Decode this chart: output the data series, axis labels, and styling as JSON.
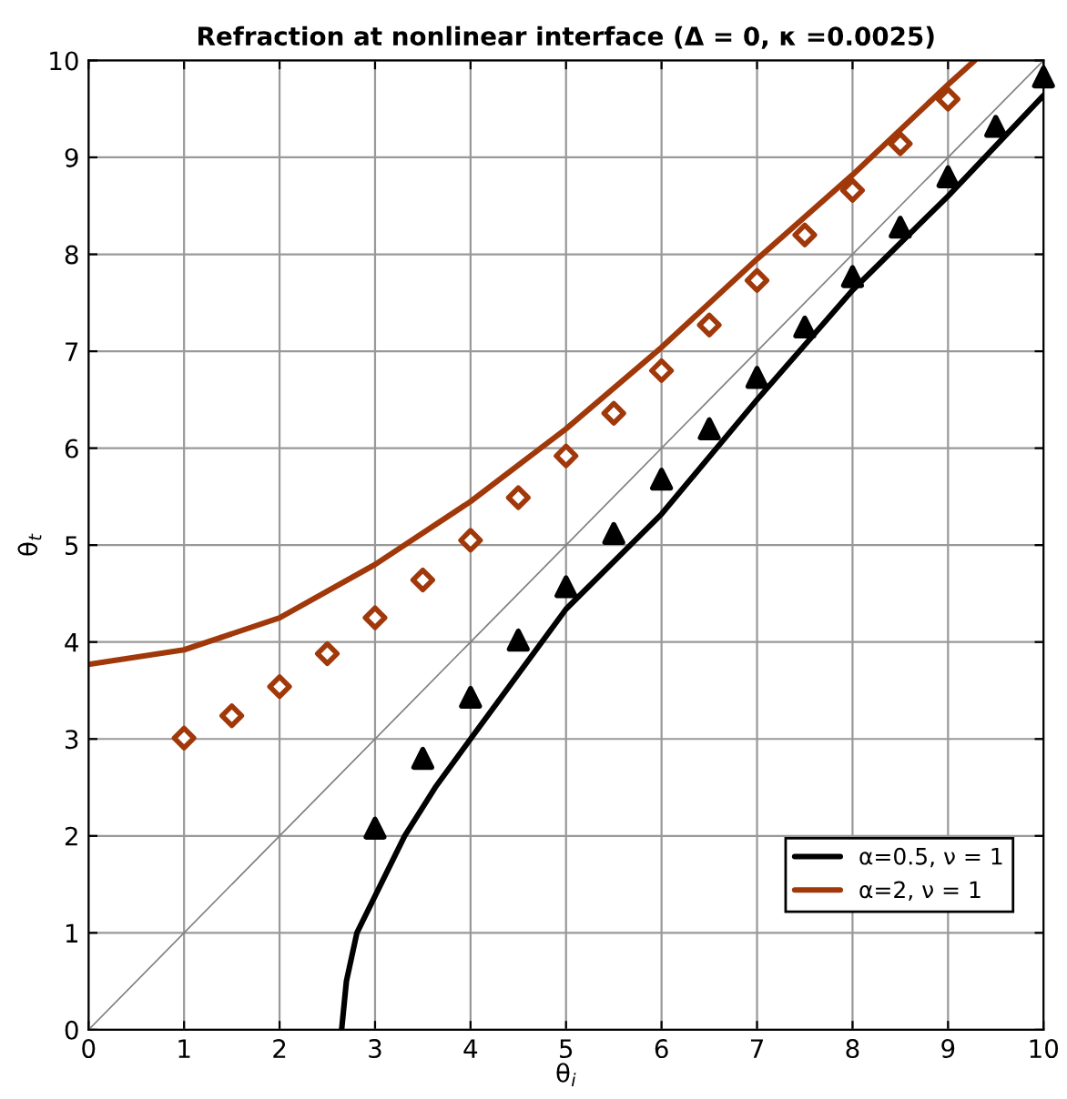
{
  "chart_data": {
    "type": "line",
    "title": "Refraction at nonlinear interface (Δ = 0, κ =0.0025)",
    "xlabel": "θ$_{i}$",
    "ylabel": "θ$_{t}$",
    "xlim": [
      0,
      10
    ],
    "ylim": [
      0,
      10
    ],
    "xticks": [
      0,
      1,
      2,
      3,
      4,
      5,
      6,
      7,
      8,
      9,
      10
    ],
    "yticks": [
      0,
      1,
      2,
      3,
      4,
      5,
      6,
      7,
      8,
      9,
      10
    ],
    "grid": true,
    "legend": "bottom right",
    "series": [
      {
        "color": "#808080",
        "x": [
          0,
          10
        ],
        "values": [
          0,
          10
        ]
      },
      {
        "type": "line",
        "name": "α=0.5, ν = 1",
        "color": "#000000",
        "x": [
          2.65,
          2.7,
          2.81,
          3.06,
          3.31,
          3.63,
          4.0,
          5,
          6,
          7,
          8,
          9,
          10
        ],
        "values": [
          0,
          0.5,
          1,
          1.5,
          2,
          2.5,
          3,
          4.34,
          5.32,
          6.5,
          7.63,
          8.6,
          9.64
        ]
      },
      {
        "type": "line",
        "name": "α=2, ν = 1",
        "color": "#a0380a",
        "x": [
          0,
          1,
          2,
          3,
          4,
          5,
          6,
          7,
          8,
          9,
          9.28
        ],
        "values": [
          3.77,
          3.92,
          4.25,
          4.8,
          5.45,
          6.2,
          7.04,
          7.95,
          8.82,
          9.75,
          10
        ]
      },
      {
        "type": "scatter",
        "marker": "triangle",
        "color": "#000000",
        "x": [
          3,
          3.5,
          4,
          4.5,
          5,
          5.5,
          6,
          6.5,
          7,
          7.5,
          8,
          8.5,
          9,
          9.5,
          10
        ],
        "values": [
          2.08,
          2.8,
          3.43,
          4.02,
          4.57,
          5.12,
          5.68,
          6.2,
          6.73,
          7.25,
          7.77,
          8.28,
          8.8,
          9.32,
          9.83
        ]
      },
      {
        "type": "scatter",
        "marker": "diamond",
        "color": "#a0380a",
        "x": [
          1,
          1.5,
          2,
          2.5,
          3,
          3.5,
          4,
          4.5,
          5,
          5.5,
          6,
          6.5,
          7,
          7.5,
          8,
          8.5,
          9
        ],
        "values": [
          3.01,
          3.24,
          3.54,
          3.88,
          4.25,
          4.64,
          5.05,
          5.49,
          5.92,
          6.36,
          6.8,
          7.27,
          7.73,
          8.2,
          8.66,
          9.14,
          9.6
        ]
      }
    ]
  }
}
